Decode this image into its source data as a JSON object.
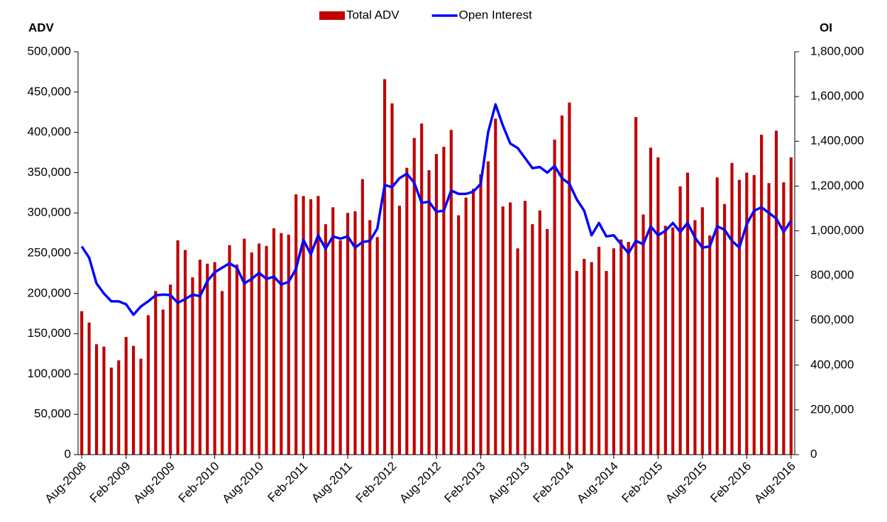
{
  "chart_data": {
    "type": "bar",
    "y_label": "ADV",
    "y2_label": "OI",
    "categories": [
      "Aug-2008",
      null,
      null,
      null,
      null,
      null,
      "Feb-2009",
      null,
      null,
      null,
      null,
      null,
      "Aug-2009",
      null,
      null,
      null,
      null,
      null,
      "Feb-2010",
      null,
      null,
      null,
      null,
      null,
      "Aug-2010",
      null,
      null,
      null,
      null,
      null,
      "Feb-2011",
      null,
      null,
      null,
      null,
      null,
      "Aug-2011",
      null,
      null,
      null,
      null,
      null,
      "Feb-2012",
      null,
      null,
      null,
      null,
      null,
      "Aug-2012",
      null,
      null,
      null,
      null,
      null,
      "Feb-2013",
      null,
      null,
      null,
      null,
      null,
      "Aug-2013",
      null,
      null,
      null,
      null,
      null,
      "Feb-2014",
      null,
      null,
      null,
      null,
      null,
      "Aug-2014",
      null,
      null,
      null,
      null,
      null,
      "Feb-2015",
      null,
      null,
      null,
      null,
      null,
      "Aug-2015",
      null,
      null,
      null,
      null,
      null,
      "Feb-2016",
      null,
      null,
      null,
      null,
      null,
      "Aug-2016"
    ],
    "series": [
      {
        "name": "Total ADV",
        "type": "bar",
        "color": "#c00000",
        "values": [
          178000,
          164000,
          137000,
          134000,
          108000,
          117000,
          146000,
          135000,
          119000,
          173000,
          203000,
          180000,
          211000,
          266000,
          254000,
          220000,
          242000,
          237000,
          239000,
          203000,
          260000,
          236000,
          268000,
          251000,
          262000,
          259000,
          281000,
          275000,
          273000,
          323000,
          321000,
          317000,
          321000,
          286000,
          307000,
          266000,
          300000,
          302000,
          342000,
          291000,
          270000,
          466000,
          436000,
          309000,
          356000,
          393000,
          411000,
          353000,
          373000,
          382000,
          403000,
          297000,
          319000,
          330000,
          348000,
          364000,
          417000,
          308000,
          313000,
          256000,
          315000,
          286000,
          303000,
          280000,
          391000,
          421000,
          437000,
          228000,
          243000,
          239000,
          258000,
          228000,
          256000,
          267000,
          264000,
          419000,
          298000,
          381000,
          369000,
          284000,
          282000,
          333000,
          350000,
          291000,
          307000,
          272000,
          344000,
          311000,
          362000,
          341000,
          350000,
          347000,
          397000,
          337000,
          402000,
          338000,
          369000
        ]
      },
      {
        "name": "Open Interest",
        "type": "line",
        "axis": "y2",
        "color": "#0000ff",
        "values": [
          930000,
          880000,
          765000,
          720000,
          685000,
          685000,
          672000,
          625000,
          662000,
          685000,
          712000,
          715000,
          713000,
          678000,
          695000,
          715000,
          708000,
          775000,
          815000,
          835000,
          855000,
          835000,
          765000,
          785000,
          812000,
          785000,
          795000,
          760000,
          772000,
          830000,
          960000,
          895000,
          980000,
          920000,
          975000,
          965000,
          975000,
          925000,
          950000,
          955000,
          1010000,
          1205000,
          1195000,
          1235000,
          1255000,
          1215000,
          1125000,
          1130000,
          1085000,
          1090000,
          1180000,
          1165000,
          1165000,
          1175000,
          1210000,
          1440000,
          1565000,
          1470000,
          1390000,
          1370000,
          1325000,
          1280000,
          1285000,
          1260000,
          1290000,
          1235000,
          1210000,
          1140000,
          1090000,
          980000,
          1035000,
          975000,
          980000,
          940000,
          900000,
          955000,
          940000,
          1020000,
          980000,
          1000000,
          1035000,
          995000,
          1035000,
          970000,
          925000,
          930000,
          1020000,
          1005000,
          955000,
          925000,
          1030000,
          1090000,
          1105000,
          1080000,
          1055000,
          995000,
          1045000
        ]
      }
    ],
    "ylim": [
      0,
      500000
    ],
    "yticks": [
      0,
      {
        "value": 50000,
        "label": "50,000"
      },
      {
        "value": 100000,
        "label": "100,000"
      },
      {
        "value": 150000,
        "label": "150,000"
      },
      {
        "value": 200000,
        "label": "200,000"
      },
      {
        "value": 250000,
        "label": "250,000"
      },
      {
        "value": 300000,
        "label": "300,000"
      },
      {
        "value": 350000,
        "label": "350,000"
      },
      {
        "value": 400000,
        "label": "400,000"
      },
      {
        "value": 450000,
        "label": "450,000"
      },
      {
        "value": 500000,
        "label": "500,000"
      }
    ],
    "y2lim": [
      0,
      1800000
    ],
    "y2ticks": [
      0,
      {
        "value": 200000,
        "label": "200,000"
      },
      {
        "value": 400000,
        "label": "400,000"
      },
      {
        "value": 600000,
        "label": "600,000"
      },
      {
        "value": 800000,
        "label": "800,000"
      },
      {
        "value": 1000000,
        "label": "1,000,000"
      },
      {
        "value": 1200000,
        "label": "1,200,000"
      },
      {
        "value": 1400000,
        "label": "1,400,000"
      },
      {
        "value": 1600000,
        "label": "1,600,000"
      },
      {
        "value": 1800000,
        "label": "1,800,000"
      }
    ],
    "grid": false,
    "legend": "top"
  }
}
